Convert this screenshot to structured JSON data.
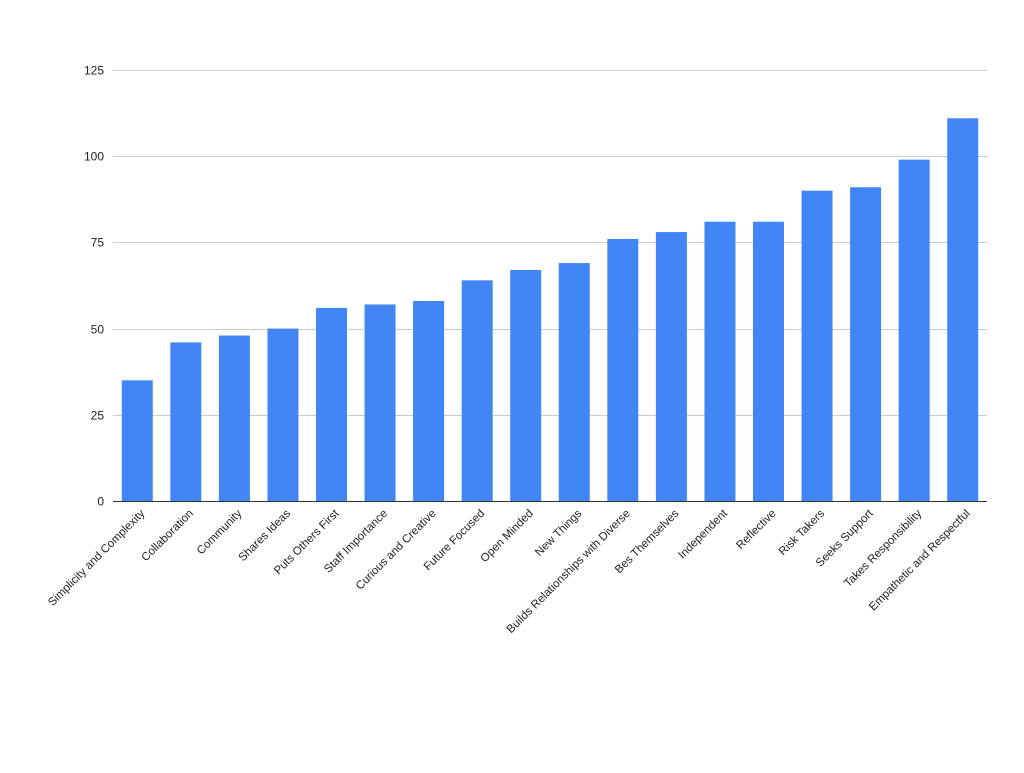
{
  "chart_data": {
    "type": "bar",
    "title": "",
    "xlabel": "",
    "ylabel": "",
    "ylim": [
      0,
      125
    ],
    "yticks": [
      0,
      25,
      50,
      75,
      100,
      125
    ],
    "grid": true,
    "legend": "none",
    "bar_color": "#4285f4",
    "categories": [
      "Simplicity and Complexity",
      "Collaboration",
      "Community",
      "Shares Ideas",
      "Puts Others First",
      "Staff Importance",
      "Curious and Creative",
      "Future Focused",
      "Open Minded",
      "New Things",
      "Builds Relationships with Diverse",
      "Bes Themselves",
      "Independent",
      "Reflective",
      "Risk Takers",
      "Seeks Support",
      "Takes Responsibility",
      "Empathetic and Respectful"
    ],
    "values": [
      35,
      46,
      48,
      50,
      56,
      57,
      58,
      64,
      67,
      69,
      76,
      78,
      81,
      81,
      90,
      91,
      99,
      111
    ]
  }
}
